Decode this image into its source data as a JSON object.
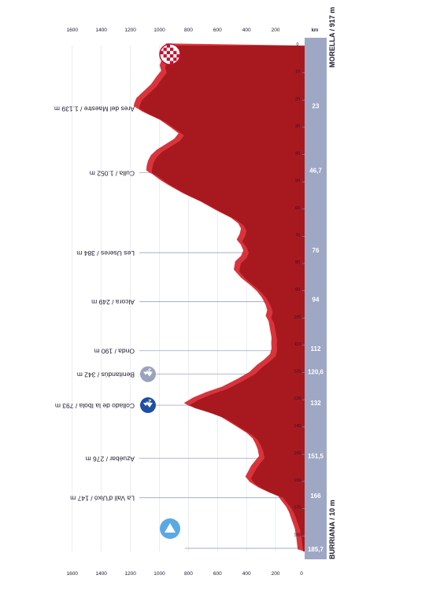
{
  "colors": {
    "profile_fill": "#a8191f",
    "profile_side": "#d9343c",
    "axis_bar": "#9ea7c4",
    "axis_text": "#ffffff",
    "guide_line": "#8a93b5",
    "label_text": "#1a1a2e",
    "grid": "#dde1ec",
    "start_marker": "#5aa9e6",
    "finish_check": "#c8102e",
    "cat2_marker": "#1f4fa3",
    "cat3_marker": "#9aa3bd"
  },
  "chart_data": {
    "type": "area",
    "orientation": "rotated-90-clockwise",
    "start_label": "MORELLA / 917 m",
    "finish_label": "BURRIANA / 10 m",
    "xlabel": "km",
    "xlim": [
      0,
      185.7
    ],
    "ylim": [
      0,
      1800
    ],
    "x_ticks": [
      0,
      10,
      20,
      30,
      40,
      50,
      60,
      70,
      80,
      90,
      100,
      110,
      120,
      130,
      140,
      150,
      160,
      170,
      180
    ],
    "y_ticks": [
      200,
      400,
      600,
      800,
      1000,
      1200,
      1400,
      1600
    ],
    "left_scale_ticks": [
      "0",
      "200",
      "400",
      "600",
      "800",
      "1000",
      "1200",
      "1400",
      "1600"
    ],
    "right_scale_ticks": [
      "200",
      "400",
      "600",
      "800",
      "1000",
      "1200",
      "1400",
      "1600"
    ],
    "left_scale_zero": "km",
    "right_scale_zero": "0",
    "profile": [
      [
        0,
        917
      ],
      [
        2,
        930
      ],
      [
        5,
        940
      ],
      [
        8,
        960
      ],
      [
        10,
        950
      ],
      [
        12,
        980
      ],
      [
        15,
        1020
      ],
      [
        18,
        1080
      ],
      [
        20,
        1120
      ],
      [
        22,
        1135
      ],
      [
        23,
        1139
      ],
      [
        25,
        1080
      ],
      [
        28,
        960
      ],
      [
        31,
        880
      ],
      [
        33,
        830
      ],
      [
        35,
        860
      ],
      [
        37,
        920
      ],
      [
        39,
        980
      ],
      [
        41,
        1020
      ],
      [
        43,
        1040
      ],
      [
        45,
        1050
      ],
      [
        46.7,
        1052
      ],
      [
        48,
        1010
      ],
      [
        50,
        960
      ],
      [
        52,
        900
      ],
      [
        55,
        800
      ],
      [
        58,
        680
      ],
      [
        61,
        580
      ],
      [
        64,
        470
      ],
      [
        66,
        420
      ],
      [
        68,
        400
      ],
      [
        70,
        410
      ],
      [
        72,
        430
      ],
      [
        74,
        400
      ],
      [
        76,
        384
      ],
      [
        78,
        400
      ],
      [
        80,
        440
      ],
      [
        83,
        450
      ],
      [
        86,
        400
      ],
      [
        89,
        330
      ],
      [
        91,
        290
      ],
      [
        93,
        260
      ],
      [
        94,
        249
      ],
      [
        96,
        230
      ],
      [
        98,
        220
      ],
      [
        100,
        230
      ],
      [
        102,
        210
      ],
      [
        105,
        200
      ],
      [
        108,
        190
      ],
      [
        110,
        192
      ],
      [
        112,
        190
      ],
      [
        114,
        200
      ],
      [
        116,
        240
      ],
      [
        118,
        290
      ],
      [
        120.6,
        342
      ],
      [
        123,
        420
      ],
      [
        126,
        530
      ],
      [
        128,
        640
      ],
      [
        130,
        730
      ],
      [
        132,
        793
      ],
      [
        133,
        760
      ],
      [
        135,
        640
      ],
      [
        137,
        540
      ],
      [
        139,
        480
      ],
      [
        141,
        420
      ],
      [
        143,
        360
      ],
      [
        145,
        320
      ],
      [
        147,
        300
      ],
      [
        149,
        285
      ],
      [
        151.5,
        276
      ],
      [
        153,
        300
      ],
      [
        155,
        330
      ],
      [
        157,
        350
      ],
      [
        159,
        370
      ],
      [
        161,
        340
      ],
      [
        163,
        280
      ],
      [
        165,
        200
      ],
      [
        166,
        147
      ],
      [
        168,
        120
      ],
      [
        170,
        90
      ],
      [
        172,
        70
      ],
      [
        175,
        50
      ],
      [
        178,
        30
      ],
      [
        181,
        20
      ],
      [
        185.7,
        10
      ]
    ],
    "km_markers": [
      {
        "km": 23,
        "label": "23"
      },
      {
        "km": 46.7,
        "label": "46,7"
      },
      {
        "km": 76,
        "label": "76"
      },
      {
        "km": 94,
        "label": "94"
      },
      {
        "km": 112,
        "label": "112"
      },
      {
        "km": 120.6,
        "label": "120,6"
      },
      {
        "km": 132,
        "label": "132"
      },
      {
        "km": 151.5,
        "label": "151,5"
      },
      {
        "km": 166,
        "label": "166"
      },
      {
        "km": 185.7,
        "label": "185,7"
      }
    ],
    "waypoints": [
      {
        "km": 23,
        "label": "Ares del Maestre / 1.139 m"
      },
      {
        "km": 46.7,
        "label": "Culla / 1.052 m"
      },
      {
        "km": 76,
        "label": "Les Useres / 384 m"
      },
      {
        "km": 94,
        "label": "Alcora / 249 m"
      },
      {
        "km": 112,
        "label": "Onda / 190 m"
      },
      {
        "km": 120.6,
        "label": "Benitandús / 342 m",
        "climb": "3ª"
      },
      {
        "km": 132,
        "label": "Collado de la Ibola / 793 m",
        "climb": "2ª"
      },
      {
        "km": 151.5,
        "label": "Azuébar / 276 m"
      },
      {
        "km": 166,
        "label": "La Vall d'Uixó / 147 m"
      }
    ]
  }
}
